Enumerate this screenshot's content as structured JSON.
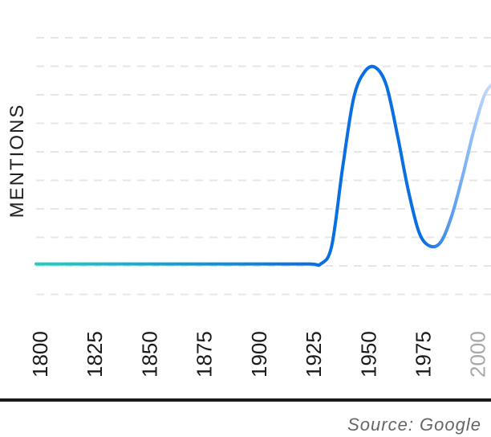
{
  "source": "Source: Google",
  "chart_data": {
    "type": "line",
    "ylabel": "MENTIONS",
    "xlabel": "",
    "title": "",
    "xlim": [
      1800,
      2010
    ],
    "ylim": [
      0,
      1
    ],
    "x_ticks": [
      1800,
      1825,
      1850,
      1875,
      1900,
      1925,
      1950,
      1975,
      2000
    ],
    "grid": true,
    "series": [
      {
        "x": [
          1800,
          1825,
          1850,
          1875,
          1900,
          1925,
          1930,
          1935,
          1940,
          1945,
          1950,
          1955,
          1960,
          1965,
          1970,
          1975,
          1980,
          1985,
          1990,
          1995,
          2000,
          2005,
          2010
        ],
        "values": [
          0.12,
          0.12,
          0.12,
          0.12,
          0.12,
          0.12,
          0.12,
          0.2,
          0.55,
          0.86,
          0.98,
          1.0,
          0.92,
          0.7,
          0.45,
          0.26,
          0.2,
          0.22,
          0.34,
          0.52,
          0.72,
          0.88,
          0.94
        ]
      }
    ],
    "colors": {
      "line_start": "#1ed0c4",
      "line_mid": "#0a6fe2",
      "line_end": "#c9dcff",
      "grid": "#e6e6e6"
    }
  }
}
